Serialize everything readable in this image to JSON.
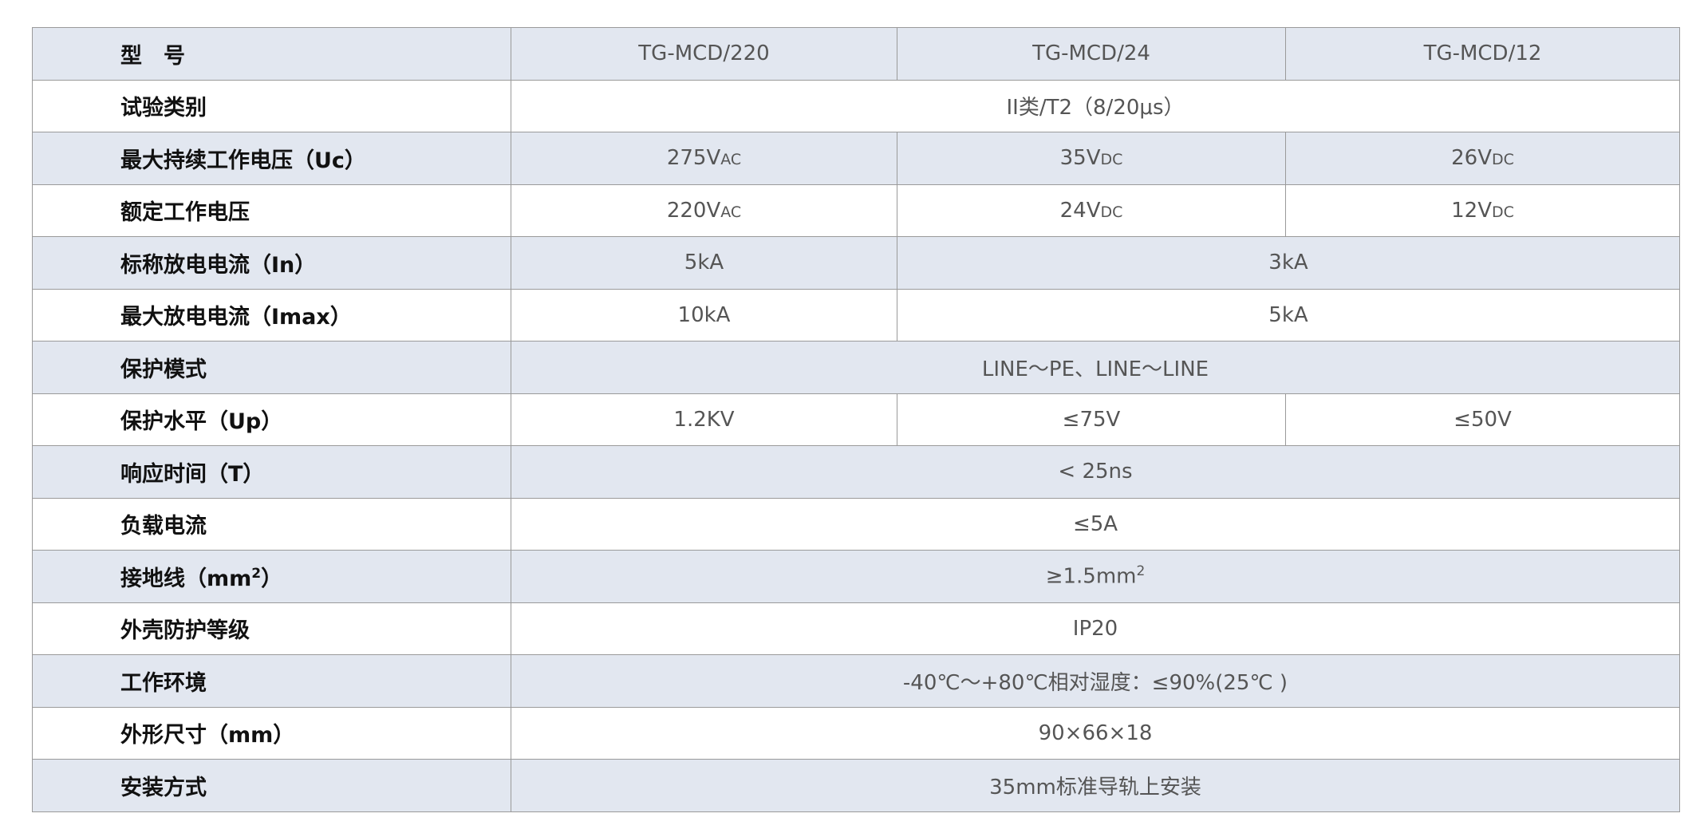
{
  "colors": {
    "shade": "#e2e7f0",
    "border": "#9a9a9a",
    "label": "#111111",
    "value": "#555555"
  },
  "rows": [
    {
      "label": "型　号",
      "cells": [
        {
          "text": "TG-MCD/220",
          "span": 1
        },
        {
          "text": "TG-MCD/24",
          "span": 1
        },
        {
          "text": "TG-MCD/12",
          "span": 1
        }
      ]
    },
    {
      "label": "试验类别",
      "cells": [
        {
          "text": "II类/T2（8/20μs）",
          "span": 3
        }
      ]
    },
    {
      "label": "最大持续工作电压（Uc）",
      "cells": [
        {
          "text": "275V",
          "sub": "AC",
          "span": 1
        },
        {
          "text": "35V",
          "sub": "DC",
          "span": 1
        },
        {
          "text": "26V",
          "sub": "DC",
          "span": 1
        }
      ]
    },
    {
      "label": "额定工作电压",
      "cells": [
        {
          "text": "220V",
          "sub": "AC",
          "span": 1
        },
        {
          "text": "24V",
          "sub": "DC",
          "span": 1
        },
        {
          "text": "12V",
          "sub": "DC",
          "span": 1
        }
      ]
    },
    {
      "label": "标称放电电流（In）",
      "cells": [
        {
          "text": "5kA",
          "span": 1
        },
        {
          "text": "3kA",
          "span": 2
        }
      ]
    },
    {
      "label": "最大放电电流（Imax）",
      "cells": [
        {
          "text": "10kA",
          "span": 1
        },
        {
          "text": "5kA",
          "span": 2
        }
      ]
    },
    {
      "label": "保护模式",
      "cells": [
        {
          "text": "LINE～PE、LINE～LINE",
          "span": 3
        }
      ]
    },
    {
      "label": "保护水平（Up）",
      "cells": [
        {
          "text": "1.2KV",
          "span": 1
        },
        {
          "text": "≤75V",
          "span": 1
        },
        {
          "text": "≤50V",
          "span": 1
        }
      ]
    },
    {
      "label": "响应时间（T）",
      "cells": [
        {
          "text": "< 25ns",
          "span": 3
        }
      ]
    },
    {
      "label": "负载电流",
      "cells": [
        {
          "text": "≤5A",
          "span": 3
        }
      ]
    },
    {
      "label": "接地线（mm",
      "label_sup": "2",
      "label_tail": "）",
      "cells": [
        {
          "text": "≥1.5mm",
          "sup": "2",
          "span": 3
        }
      ]
    },
    {
      "label": "外壳防护等级",
      "cells": [
        {
          "text": "IP20",
          "span": 3
        }
      ]
    },
    {
      "label": "工作环境",
      "cells": [
        {
          "text": "-40℃～+80℃相对湿度：≤90%(25℃ )",
          "span": 3
        }
      ]
    },
    {
      "label": "外形尺寸（mm）",
      "cells": [
        {
          "text": "90×66×18",
          "span": 3
        }
      ]
    },
    {
      "label": "安装方式",
      "cells": [
        {
          "text": "35mm标准导轨上安装",
          "span": 3
        }
      ]
    }
  ]
}
